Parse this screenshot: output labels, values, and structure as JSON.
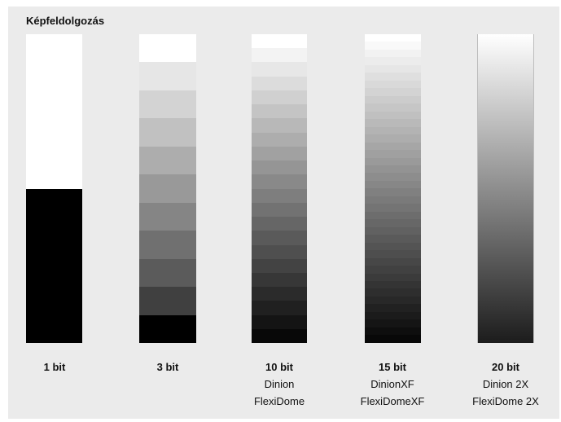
{
  "title": "Képfeldolgozás",
  "bars": [
    {
      "levels": 2,
      "label": "1 bit",
      "models": [],
      "shades": [
        "#ffffff",
        "#000000"
      ]
    },
    {
      "levels": 11,
      "label": "3 bit",
      "models": [],
      "shades": [
        "#ffffff",
        "#e6e6e6",
        "#d3d3d3",
        "#c1c1c1",
        "#adadad",
        "#999999",
        "#858585",
        "#707070",
        "#5b5b5b",
        "#404040",
        "#000000"
      ]
    },
    {
      "levels": 22,
      "label": "10 bit",
      "models": [
        "Dinion",
        "FlexiDome"
      ],
      "shades": []
    },
    {
      "levels": 40,
      "label": "15 bit",
      "models": [
        "DinionXF",
        "FlexiDomeXF"
      ],
      "shades": []
    },
    {
      "levels": 0,
      "label": "20 bit",
      "models": [
        "Dinion 2X",
        "FlexiDome 2X"
      ],
      "shades": []
    }
  ]
}
